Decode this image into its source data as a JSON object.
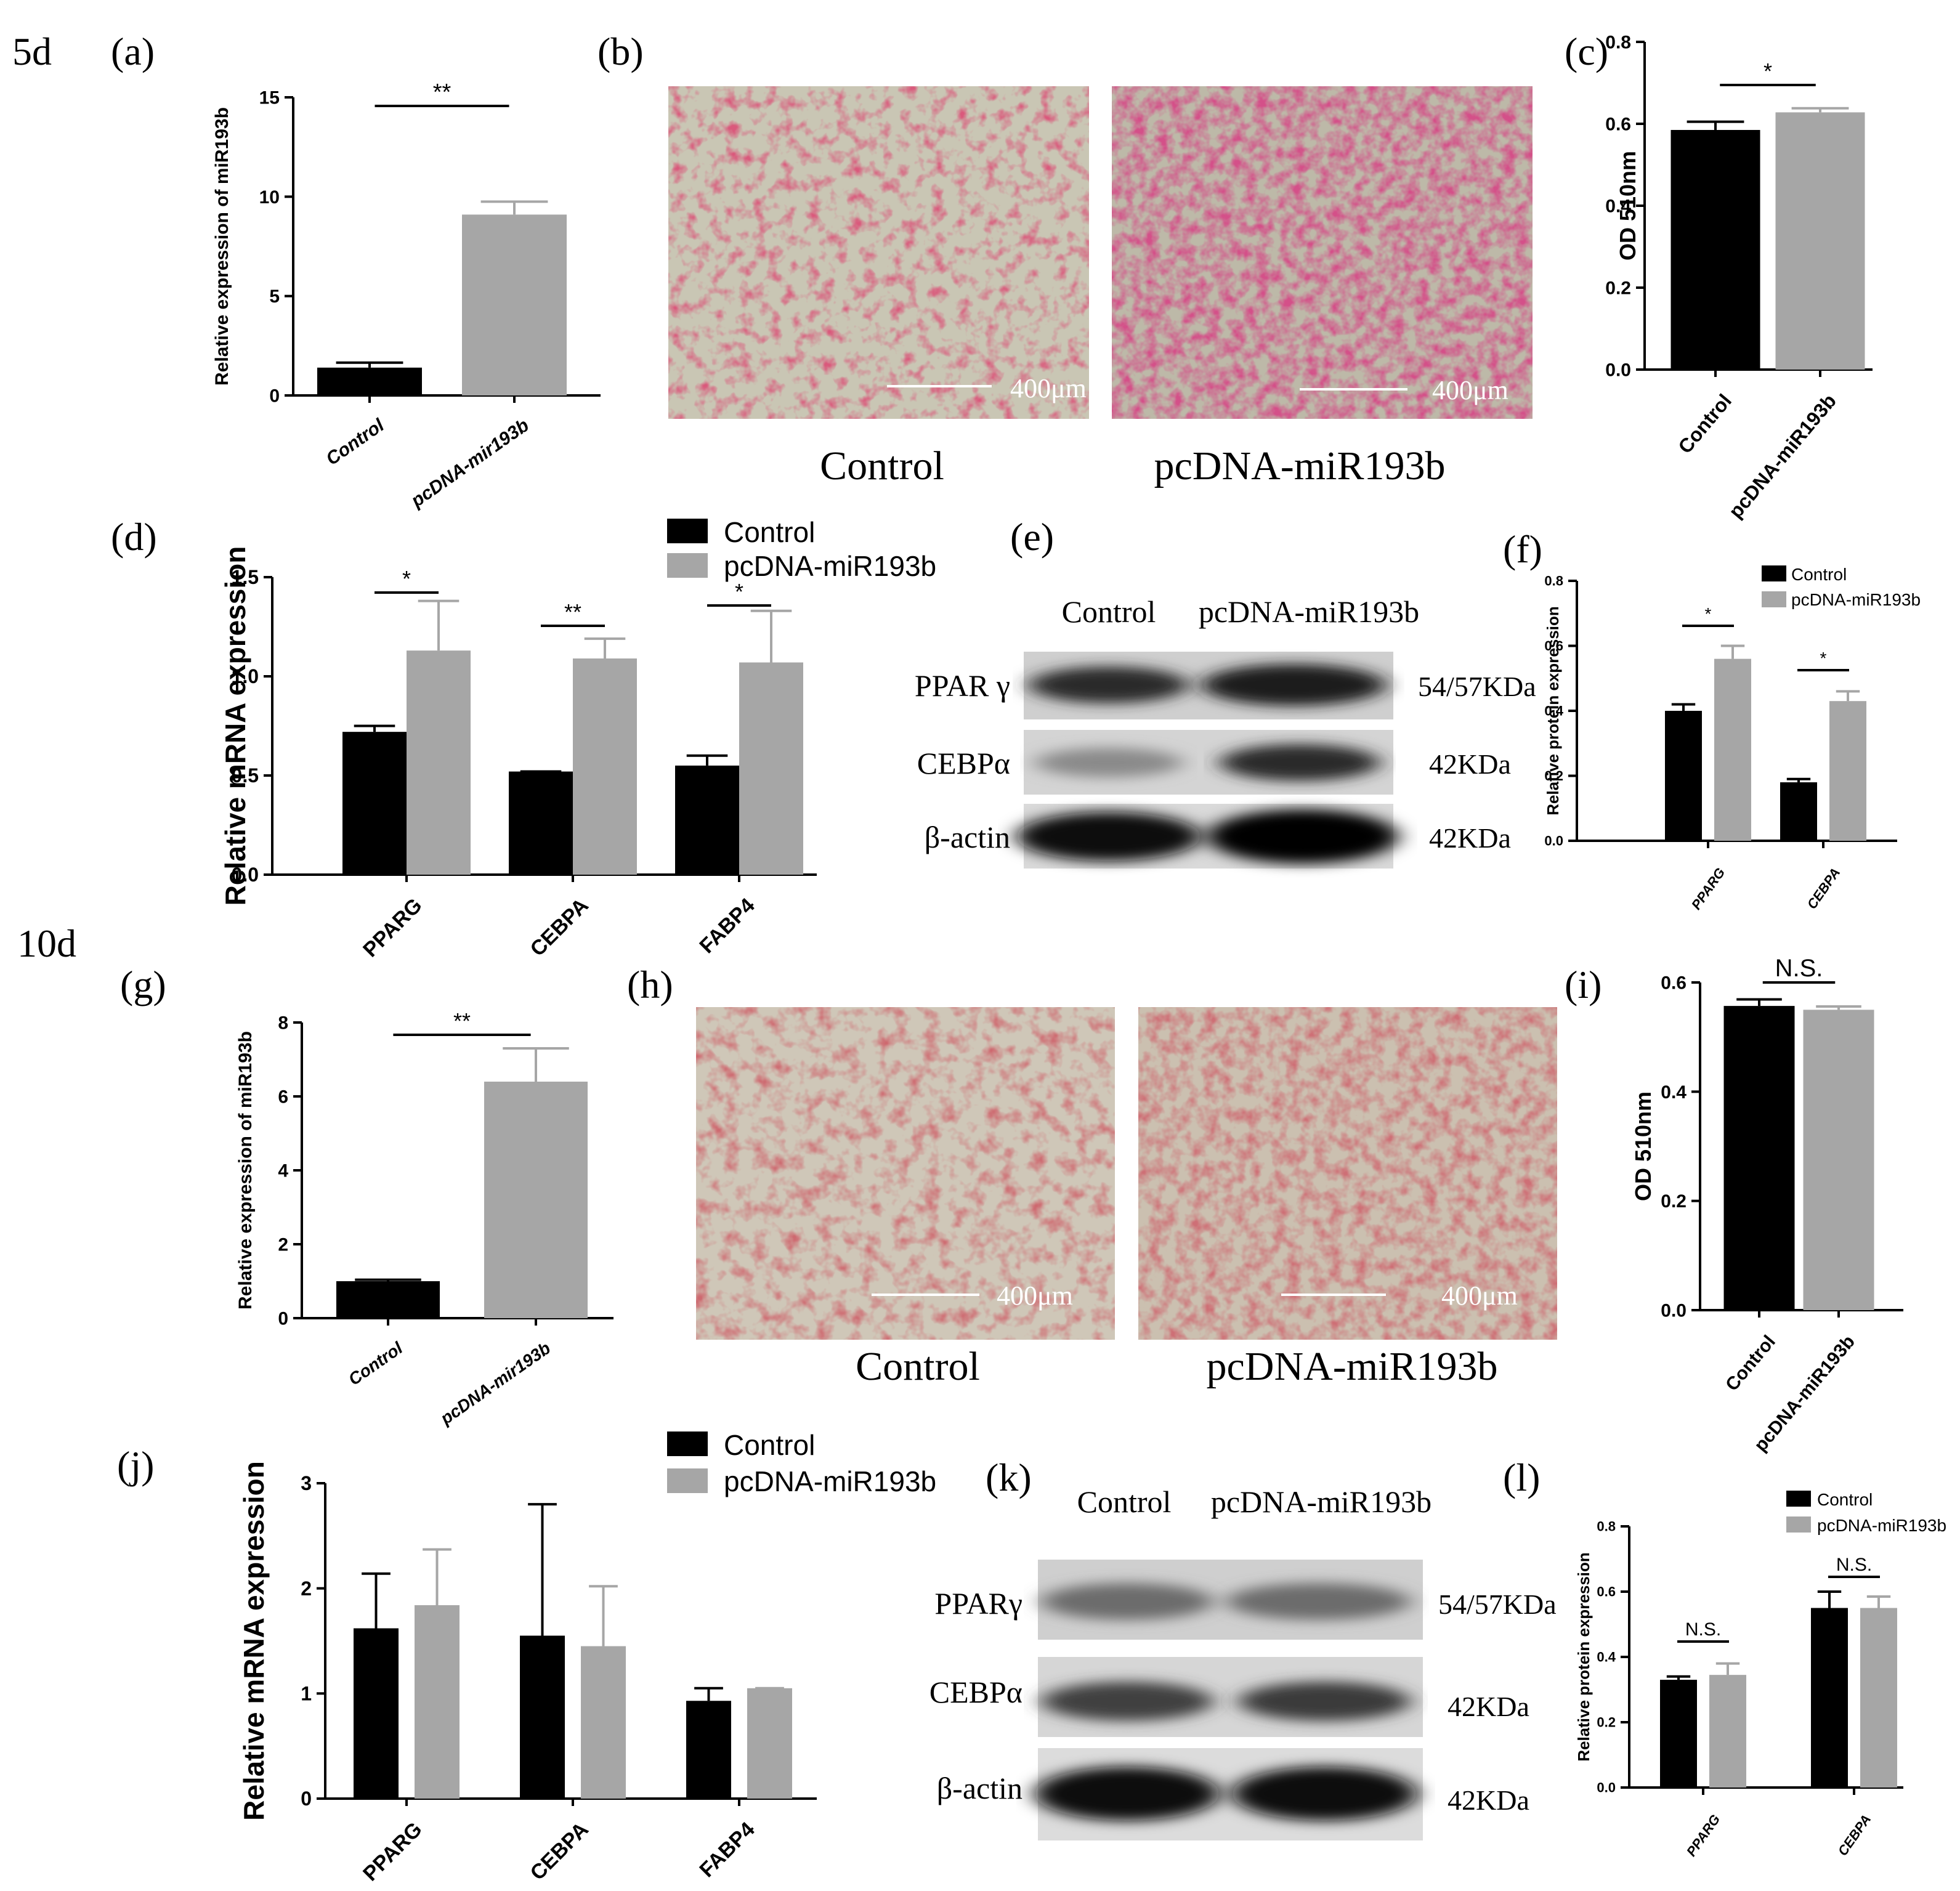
{
  "figure": {
    "time_labels": [
      "5d",
      "10d"
    ],
    "colors": {
      "control": "#000000",
      "treatment": "#a6a6a6",
      "axis": "#000000"
    }
  },
  "panels": {
    "a": {
      "label": "(a)"
    },
    "b": {
      "label": "(b)",
      "scale_text": "400μm",
      "captions": [
        "Control",
        "pcDNA-miR193b"
      ]
    },
    "c": {
      "label": "(c)"
    },
    "d": {
      "label": "(d)",
      "legend": [
        "Control",
        "pcDNA-miR193b"
      ]
    },
    "e": {
      "label": "(e)",
      "lanes": [
        "Control",
        "pcDNA-miR193b"
      ],
      "rows": [
        {
          "protein": "PPAR γ",
          "size": "54/57KDa"
        },
        {
          "protein": "CEBPα",
          "size": "42KDa"
        },
        {
          "protein": "β-actin",
          "size": "42KDa"
        }
      ]
    },
    "f": {
      "label": "(f)",
      "legend": [
        "Control",
        "pcDNA-miR193b"
      ]
    },
    "g": {
      "label": "(g)"
    },
    "h": {
      "label": "(h)",
      "scale_text": "400μm",
      "captions": [
        "Control",
        "pcDNA-miR193b"
      ]
    },
    "i": {
      "label": "(i)"
    },
    "j": {
      "label": "(j)",
      "legend": [
        "Control",
        "pcDNA-miR193b"
      ]
    },
    "k": {
      "label": "(k)",
      "lanes": [
        "Control",
        "pcDNA-miR193b"
      ],
      "rows": [
        {
          "protein": "PPARγ",
          "size": "54/57KDa"
        },
        {
          "protein": "CEBPα",
          "size": "42KDa"
        },
        {
          "protein": "β-actin",
          "size": "42KDa"
        }
      ]
    },
    "l": {
      "label": "(l)",
      "legend": [
        "Control",
        "pcDNA-miR193b"
      ]
    }
  },
  "chart_data": [
    {
      "id": "a",
      "type": "bar",
      "categories": [
        "Control",
        "pcDNA-mir193b"
      ],
      "values": [
        1.4,
        9.1
      ],
      "errors": [
        0.25,
        0.65
      ],
      "ylabel": "Relative expression of miR193b",
      "ylim": [
        0,
        15
      ],
      "yticks": [
        "0",
        "5",
        "10",
        "15"
      ],
      "italic_ticks": true,
      "significance": [
        {
          "text": "**"
        }
      ]
    },
    {
      "id": "c",
      "type": "bar",
      "categories": [
        "Control",
        "pcDNA-miR193b"
      ],
      "values": [
        0.585,
        0.628
      ],
      "errors": [
        0.02,
        0.01
      ],
      "ylabel": "OD 510nm",
      "ylim": [
        0,
        0.8
      ],
      "yticks": [
        "0.0",
        "0.2",
        "0.4",
        "0.6",
        "0.8"
      ],
      "significance": [
        {
          "text": "*"
        }
      ]
    },
    {
      "id": "d",
      "type": "bar",
      "categories": [
        "PPARG",
        "CEBPA",
        "FABP4"
      ],
      "ylabel": "Relative mRNA expression",
      "ylim": [
        0,
        1.5
      ],
      "yticks": [
        "0.0",
        "0.5",
        "1.0",
        "1.5"
      ],
      "series": [
        {
          "name": "Control",
          "values": [
            0.72,
            0.52,
            0.55
          ],
          "errors": [
            0.03,
            0.0,
            0.05
          ]
        },
        {
          "name": "pcDNA-miR193b",
          "values": [
            1.13,
            1.09,
            1.07
          ],
          "errors": [
            0.25,
            0.1,
            0.26
          ]
        }
      ],
      "significance": [
        {
          "text": "*"
        },
        {
          "text": "**"
        },
        {
          "text": "*"
        }
      ]
    },
    {
      "id": "f",
      "type": "bar",
      "categories": [
        "PPARG",
        "CEBPA"
      ],
      "ylabel": "Relative protein expression",
      "ylim": [
        0,
        0.8
      ],
      "yticks": [
        "0.0",
        "0.2",
        "0.4",
        "0.6",
        "0.8"
      ],
      "italic_ticks": true,
      "series": [
        {
          "name": "Control",
          "values": [
            0.4,
            0.18
          ],
          "errors": [
            0.02,
            0.01
          ]
        },
        {
          "name": "pcDNA-miR193b",
          "values": [
            0.56,
            0.43
          ],
          "errors": [
            0.04,
            0.03
          ]
        }
      ],
      "significance": [
        {
          "text": "*"
        },
        {
          "text": "*"
        }
      ]
    },
    {
      "id": "g",
      "type": "bar",
      "categories": [
        "Control",
        "pcDNA-mir193b"
      ],
      "values": [
        1.0,
        6.4
      ],
      "errors": [
        0.04,
        0.9
      ],
      "ylabel": "Relative expression of miR193b",
      "ylim": [
        0,
        8
      ],
      "yticks": [
        "0",
        "2",
        "4",
        "6",
        "8"
      ],
      "italic_ticks": true,
      "significance": [
        {
          "text": "**"
        }
      ]
    },
    {
      "id": "i",
      "type": "bar",
      "categories": [
        "Control",
        "pcDNA-miR193b"
      ],
      "values": [
        0.557,
        0.55
      ],
      "errors": [
        0.012,
        0.006
      ],
      "ylabel": "OD 510nm",
      "ylim": [
        0,
        0.6
      ],
      "yticks": [
        "0.0",
        "0.2",
        "0.4",
        "0.6"
      ],
      "significance": [
        {
          "text": "N.S."
        }
      ]
    },
    {
      "id": "j",
      "type": "bar",
      "categories": [
        "PPARG",
        "CEBPA",
        "FABP4"
      ],
      "ylabel": "Relative mRNA expression",
      "ylim": [
        0,
        3
      ],
      "yticks": [
        "0",
        "1",
        "2",
        "3"
      ],
      "series": [
        {
          "name": "Control",
          "values": [
            1.62,
            1.55,
            0.93
          ],
          "errors": [
            0.52,
            1.25,
            0.12
          ]
        },
        {
          "name": "pcDNA-miR193b",
          "values": [
            1.84,
            1.45,
            1.05
          ],
          "errors": [
            0.53,
            0.57,
            0.0
          ]
        }
      ],
      "significance": []
    },
    {
      "id": "l",
      "type": "bar",
      "categories": [
        "PPARG",
        "CEBPA"
      ],
      "ylabel": "Relative protein expression",
      "ylim": [
        0,
        0.8
      ],
      "yticks": [
        "0.0",
        "0.2",
        "0.4",
        "0.6",
        "0.8"
      ],
      "italic_ticks": true,
      "series": [
        {
          "name": "Control",
          "values": [
            0.33,
            0.55
          ],
          "errors": [
            0.01,
            0.05
          ]
        },
        {
          "name": "pcDNA-miR193b",
          "values": [
            0.345,
            0.55
          ],
          "errors": [
            0.035,
            0.035
          ]
        }
      ],
      "significance": [
        {
          "text": "N.S."
        },
        {
          "text": "N.S."
        }
      ]
    }
  ]
}
